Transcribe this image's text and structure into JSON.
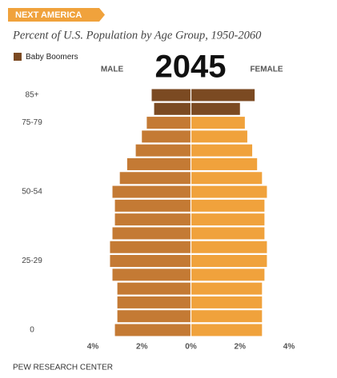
{
  "chart_data": {
    "type": "pyramid",
    "banner": "NEXT AMERICA",
    "subtitle": "Percent of U.S. Population by Age Group, 1950-2060",
    "title": "2045",
    "source": "PEW RESEARCH CENTER",
    "legend": {
      "name": "Baby Boomers",
      "color": "#7b4a22"
    },
    "categories": [
      "85+",
      null,
      "75-79",
      null,
      null,
      null,
      null,
      "50-54",
      null,
      null,
      null,
      null,
      "25-29",
      null,
      null,
      null,
      null,
      "0"
    ],
    "series": [
      {
        "name": "MALE",
        "side": "left",
        "colors": [
          "#7b4a22",
          "#7b4a22",
          "#c47a34",
          "#c47a34",
          "#c47a34",
          "#c47a34",
          "#c47a34",
          "#c47a34",
          "#c47a34",
          "#c47a34",
          "#c47a34",
          "#c47a34",
          "#c47a34",
          "#c47a34",
          "#c47a34",
          "#c47a34",
          "#c47a34",
          "#c47a34"
        ],
        "values": [
          1.6,
          1.5,
          1.8,
          2.0,
          2.25,
          2.6,
          2.9,
          3.2,
          3.1,
          3.1,
          3.2,
          3.3,
          3.3,
          3.2,
          3.0,
          3.0,
          3.0,
          3.1
        ]
      },
      {
        "name": "FEMALE",
        "side": "right",
        "colors": [
          "#7b4a22",
          "#7b4a22",
          "#f0a23c",
          "#f0a23c",
          "#f0a23c",
          "#f0a23c",
          "#f0a23c",
          "#f0a23c",
          "#f0a23c",
          "#f0a23c",
          "#f0a23c",
          "#f0a23c",
          "#f0a23c",
          "#f0a23c",
          "#f0a23c",
          "#f0a23c",
          "#f0a23c",
          "#f0a23c"
        ],
        "values": [
          2.6,
          2.0,
          2.2,
          2.3,
          2.5,
          2.7,
          2.9,
          3.1,
          3.0,
          3.0,
          3.0,
          3.1,
          3.1,
          3.0,
          2.9,
          2.9,
          2.9,
          2.9
        ]
      }
    ],
    "xlim": [
      -4,
      4
    ],
    "xticks": [
      {
        "value": -4,
        "label": "4%"
      },
      {
        "value": -2,
        "label": "2%"
      },
      {
        "value": 0,
        "label": "0%"
      },
      {
        "value": 2,
        "label": "2%"
      },
      {
        "value": 4,
        "label": "4%"
      }
    ]
  }
}
